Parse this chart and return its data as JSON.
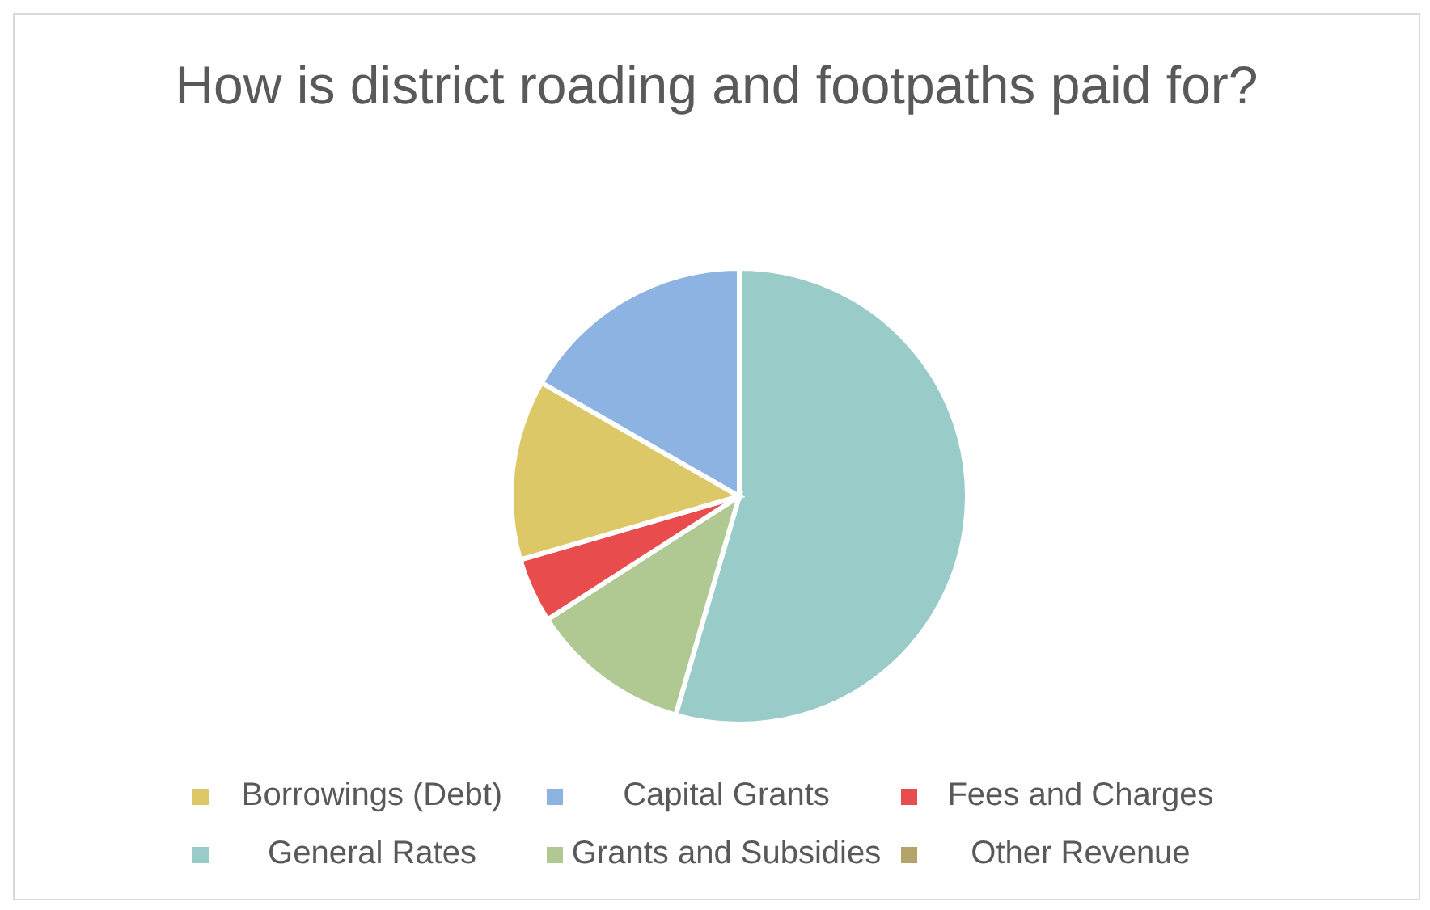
{
  "chart_data": {
    "type": "pie",
    "title": "How is district roading and footpaths paid for?",
    "categories": [
      "General Rates",
      "Grants and Subsidies",
      "Fees and Charges",
      "Borrowings (Debt)",
      "Other Revenue",
      "Capital Grants"
    ],
    "values": [
      54.5,
      11.4,
      4.6,
      12.8,
      0,
      16.7
    ],
    "colors": [
      "#99ccc8",
      "#b0c993",
      "#e84c4c",
      "#dcc866",
      "#b5a46a",
      "#8db3e2"
    ],
    "legend": "bottom"
  }
}
